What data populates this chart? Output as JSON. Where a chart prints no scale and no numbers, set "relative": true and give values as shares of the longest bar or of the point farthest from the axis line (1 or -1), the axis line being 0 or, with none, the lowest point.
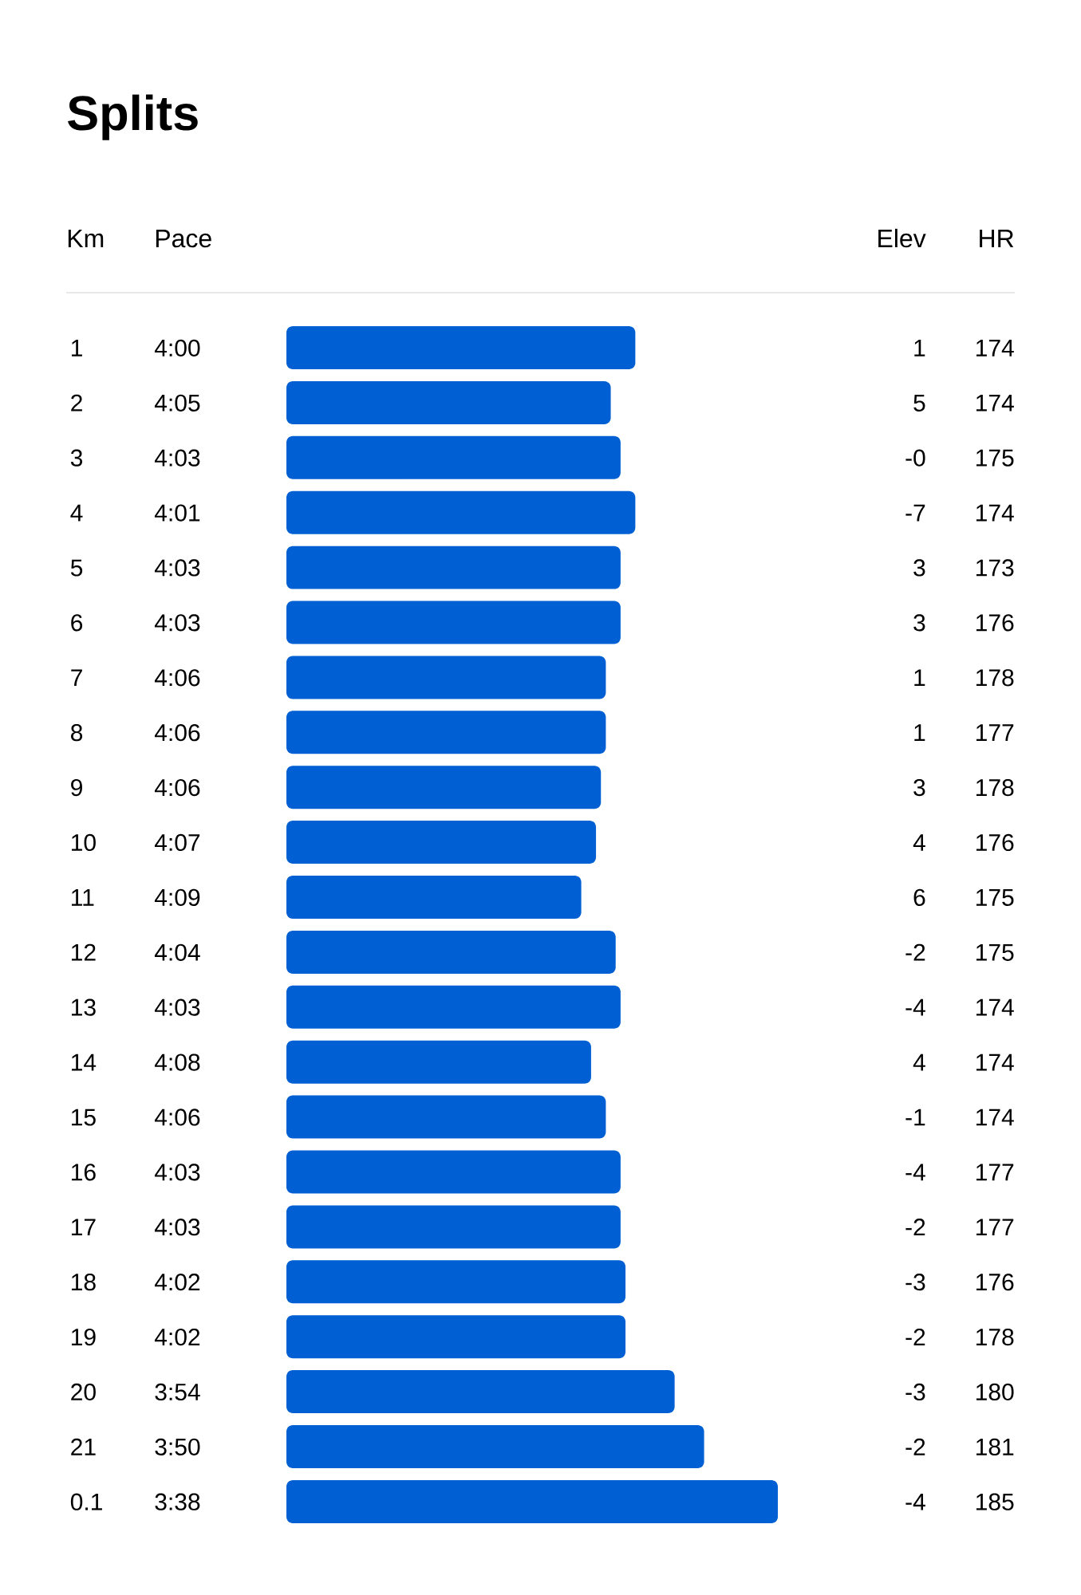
{
  "chart_data": {
    "type": "bar",
    "orientation": "horizontal",
    "relative": true,
    "title": "Splits",
    "color": "#0060d3",
    "tick_labels": "y",
    "categories": [
      "1",
      "2",
      "3",
      "4",
      "5",
      "6",
      "7",
      "8",
      "9",
      "10",
      "11",
      "12",
      "13",
      "14",
      "15",
      "16",
      "17",
      "18",
      "19",
      "20",
      "21",
      "0.1"
    ],
    "values": [
      0.71,
      0.66,
      0.68,
      0.71,
      0.68,
      0.68,
      0.65,
      0.65,
      0.64,
      0.63,
      0.6,
      0.67,
      0.68,
      0.62,
      0.65,
      0.68,
      0.68,
      0.69,
      0.69,
      0.79,
      0.85,
      1
    ],
    "annotations": [
      "Km",
      "Pace",
      "4:00",
      "4:05",
      "4:03",
      "4:01",
      "4:03",
      "4:03",
      "4:06",
      "4:06",
      "4:06",
      "4:07",
      "4:09",
      "4:04",
      "4:03",
      "4:08",
      "4:06",
      "4:03",
      "4:03",
      "4:02",
      "4:02",
      "3:54",
      "3:50",
      "3:38",
      "Elev",
      "1",
      "5",
      "-0",
      "-7",
      "3",
      "3",
      "1",
      "1",
      "3",
      "4",
      "6",
      "-2",
      "-4",
      "4",
      "-1",
      "-4",
      "-2",
      "-3",
      "-2",
      "-3",
      "-2",
      "-4",
      "HR",
      "174",
      "174",
      "175",
      "174",
      "173",
      "176",
      "178",
      "177",
      "178",
      "176",
      "175",
      "175",
      "174",
      "174",
      "174",
      "177",
      "177",
      "176",
      "178",
      "180",
      "181",
      "185"
    ]
  }
}
